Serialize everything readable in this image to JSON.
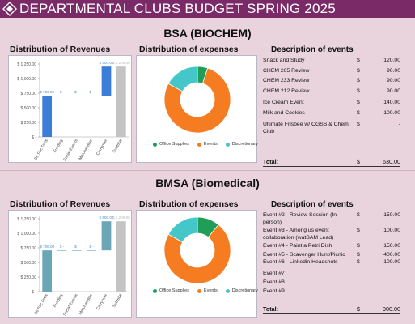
{
  "banner": {
    "title": "DEPARTMENTAL CLUBS BUDGET SPRING 2025",
    "logo_icon": "diamond-logo-icon"
  },
  "colors": {
    "banner": "#7b2a68",
    "background": "#e9d3dd",
    "office": "#1e9e57",
    "events": "#f57c20",
    "discretionary": "#45c6c9",
    "bsa_bar": "#3b7dd8",
    "bmsa_bar": "#6aa6b5",
    "subtotal": "#c4c4c4"
  },
  "sections": [
    {
      "title": "BSA (BIOCHEM)",
      "revenue_heading": "Distribution of Revenues",
      "expense_heading": "Distribution of expenses",
      "events_heading": "Description of events",
      "events": [
        {
          "name": "Snack and Study",
          "currency": "$",
          "amount": "120.00"
        },
        {
          "name": "CHEM 265 Review",
          "currency": "$",
          "amount": "90.00"
        },
        {
          "name": "CHEM 233 Review",
          "currency": "$",
          "amount": "90.00"
        },
        {
          "name": "CHEM 212 Review",
          "currency": "$",
          "amount": "90.00"
        },
        {
          "name": "Ice Cream Event",
          "currency": "$",
          "amount": "140.00"
        },
        {
          "name": "Milk and Cookies",
          "currency": "$",
          "amount": "100.00"
        },
        {
          "name": "Ultimate Frisbee w/ CGSS & Chem Club",
          "currency": "$",
          "amount": "-"
        }
      ],
      "total_label": "Total:",
      "total_currency": "$",
      "total_amount": "630.00"
    },
    {
      "title": "BMSA (Biomedical)",
      "revenue_heading": "Distribution of Revenues",
      "expense_heading": "Distribution of expenses",
      "events_heading": "Description of events",
      "events": [
        {
          "name": "Event #2 - Review Session (In person)",
          "currency": "$",
          "amount": "150.00"
        },
        {
          "name": "Event #3 - Among us event collaboration (watSAM Lead)",
          "currency": "$",
          "amount": "100.00"
        },
        {
          "name": "Event #4 - Paint a Petri Dish",
          "currency": "$",
          "amount": "150.00"
        },
        {
          "name": "Event #5 - Scavenger Hunt/Picnic",
          "currency": "$",
          "amount": "400.00"
        },
        {
          "name": "Event #6 - Linkedin Headshots",
          "currency": "$",
          "amount": "100.00"
        },
        {
          "name": "Event #7",
          "currency": "",
          "amount": ""
        },
        {
          "name": "Event #8",
          "currency": "",
          "amount": ""
        },
        {
          "name": "Event #9",
          "currency": "",
          "amount": ""
        }
      ],
      "total_label": "Total:",
      "total_currency": "$",
      "total_amount": "900.00"
    }
  ],
  "chart_data": [
    {
      "type": "bar",
      "subtype": "waterfall",
      "title": "Distribution of Revenues",
      "categories": [
        "So Soc Fees",
        "Funding",
        "Social Events",
        "Merchandise",
        "Carryover",
        "Subtotal"
      ],
      "values": [
        706,
        0,
        0,
        0,
        500,
        1206
      ],
      "data_labels": [
        "$ 706.00",
        "$ -",
        "$ -",
        "$ -",
        "$ 500.00",
        "$ 1,206.00"
      ],
      "ytick_labels": [
        "$ -",
        "$ 250.00",
        "$ 500.00",
        "$ 750.00",
        "$ 1,000.00",
        "$ 1,250.00"
      ],
      "ylim": [
        0,
        1250
      ]
    },
    {
      "type": "pie",
      "subtype": "donut",
      "title": "Distribution of expenses",
      "labels": [
        "Office Supplies",
        "Events",
        "Discretionary"
      ],
      "values": [
        5,
        78,
        17
      ]
    },
    {
      "type": "bar",
      "subtype": "waterfall",
      "title": "Distribution of Revenues",
      "categories": [
        "So Soc Fees",
        "Funding",
        "Social Events",
        "Merchandise",
        "Carryover",
        "Subtotal"
      ],
      "values": [
        706,
        0,
        0,
        0,
        500,
        1206
      ],
      "data_labels": [
        "$ 706.00",
        "$ -",
        "$ -",
        "$ -",
        "$ 500.00",
        "$ 1,206.00"
      ],
      "ytick_labels": [
        "$ -",
        "$ 250.00",
        "$ 500.00",
        "$ 750.00",
        "$ 1,000.00",
        "$ 1,250.00"
      ],
      "ylim": [
        0,
        1250
      ]
    },
    {
      "type": "pie",
      "subtype": "donut",
      "title": "Distribution of expenses",
      "labels": [
        "Office Supplies",
        "Events",
        "Discretionary"
      ],
      "values": [
        11,
        72,
        17
      ]
    }
  ]
}
